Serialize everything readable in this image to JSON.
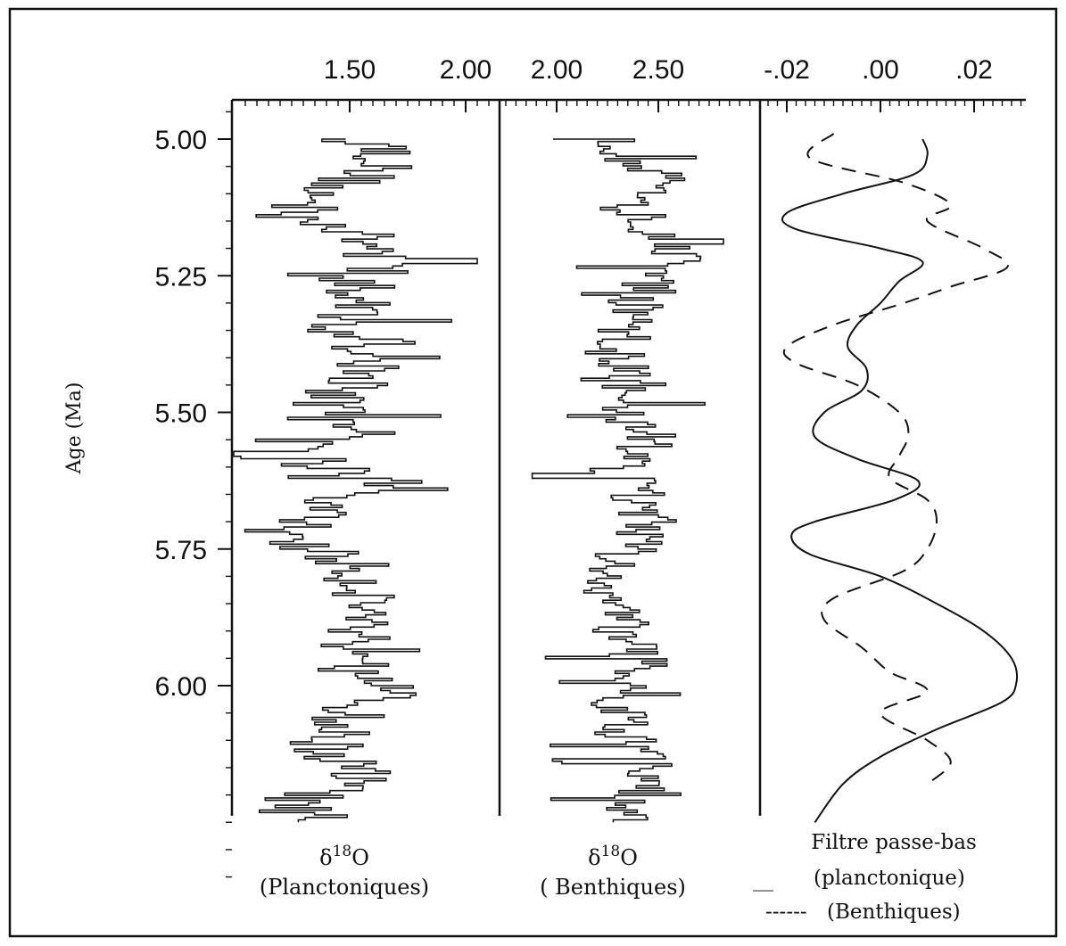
{
  "chart_data": {
    "type": "line",
    "layout": "three-panel-stratigraphic",
    "y_axis": {
      "label": "Age (Ma)",
      "range": [
        4.9,
        6.37
      ],
      "inverted": true,
      "tick_labels": [
        "5.00",
        "5.25",
        "5.50",
        "5.75",
        "6.00"
      ],
      "tick_values": [
        5.0,
        5.25,
        5.5,
        5.75,
        6.0
      ]
    },
    "panels": [
      {
        "id": "planktonic",
        "caption_symbol": "δ",
        "caption_sup": "18",
        "caption_main": "O",
        "caption_sub": "(Planctoniques)",
        "x_range": [
          1.0,
          2.05
        ],
        "tick_labels": [
          "1.50",
          "2.00"
        ],
        "tick_values": [
          1.5,
          2.0
        ],
        "series": {
          "style": "solid",
          "color": "#111111",
          "age": [
            5.0,
            5.04,
            5.08,
            5.12,
            5.16,
            5.22,
            5.27,
            5.32,
            5.37,
            5.42,
            5.48,
            5.53,
            5.58,
            5.63,
            5.68,
            5.73,
            5.78,
            5.84,
            5.9,
            5.96,
            6.01,
            6.07,
            6.12,
            6.17,
            6.21,
            6.25
          ],
          "value": [
            1.62,
            1.68,
            1.5,
            1.25,
            1.45,
            1.7,
            1.48,
            1.55,
            1.4,
            1.58,
            1.42,
            1.6,
            1.3,
            1.65,
            1.35,
            1.25,
            1.5,
            1.6,
            1.55,
            1.7,
            1.65,
            1.45,
            1.4,
            1.55,
            1.3,
            1.2
          ],
          "extremes": {
            "max": 2.05,
            "max_age": 5.225,
            "min": 1.0,
            "min_age": 5.58
          }
        }
      },
      {
        "id": "benthic",
        "caption_symbol": "δ",
        "caption_sup": "18",
        "caption_main": "O",
        "caption_sub": "( Benthiques)",
        "x_range": [
          1.85,
          2.85
        ],
        "tick_labels": [
          "2.00",
          "2.50"
        ],
        "tick_values": [
          2.0,
          2.5
        ],
        "series": {
          "style": "solid",
          "color": "#111111",
          "age": [
            5.0,
            5.04,
            5.08,
            5.12,
            5.16,
            5.2,
            5.24,
            5.28,
            5.32,
            5.36,
            5.4,
            5.45,
            5.5,
            5.55,
            5.6,
            5.65,
            5.7,
            5.75,
            5.8,
            5.85,
            5.9,
            5.95,
            6.0,
            6.05,
            6.1,
            6.15,
            6.2,
            6.25
          ],
          "value": [
            2.3,
            2.35,
            2.55,
            2.4,
            2.45,
            2.6,
            2.5,
            2.45,
            2.35,
            2.3,
            2.28,
            2.4,
            2.35,
            2.45,
            2.3,
            2.4,
            2.45,
            2.35,
            2.3,
            2.25,
            2.32,
            2.4,
            2.38,
            2.28,
            2.35,
            2.42,
            2.38,
            2.3
          ],
          "extremes": {
            "max": 2.82,
            "max_age": 5.19,
            "min": 1.88,
            "min_age": 5.62
          }
        }
      },
      {
        "id": "filter",
        "x_range": [
          -0.024,
          0.03
        ],
        "tick_labels": [
          "-.02",
          ".00",
          ".02"
        ],
        "tick_values": [
          -0.02,
          0.0,
          0.02
        ],
        "series": [
          {
            "name": "(planctonique)",
            "style": "solid",
            "age": [
              5.0,
              5.03,
              5.065,
              5.1,
              5.135,
              5.165,
              5.2,
              5.225,
              5.26,
              5.3,
              5.34,
              5.38,
              5.42,
              5.46,
              5.5,
              5.545,
              5.585,
              5.625,
              5.66,
              5.7,
              5.725,
              5.76,
              5.8,
              5.85,
              5.9,
              5.95,
              5.995,
              6.03,
              6.08,
              6.13,
              6.18,
              6.25
            ],
            "value": [
              0.009,
              0.01,
              0.007,
              -0.008,
              -0.02,
              -0.018,
              0.0,
              0.009,
              0.004,
              0.0,
              -0.005,
              -0.007,
              -0.003,
              -0.004,
              -0.012,
              -0.014,
              -0.005,
              0.008,
              0.003,
              -0.014,
              -0.019,
              -0.015,
              0.0,
              0.012,
              0.022,
              0.028,
              0.029,
              0.026,
              0.012,
              0.0,
              -0.008,
              -0.014
            ]
          },
          {
            "name": "(Benthiques)",
            "style": "dashed",
            "age": [
              4.99,
              5.035,
              5.08,
              5.12,
              5.15,
              5.2,
              5.235,
              5.27,
              5.3,
              5.34,
              5.38,
              5.41,
              5.45,
              5.5,
              5.54,
              5.58,
              5.62,
              5.66,
              5.7,
              5.75,
              5.79,
              5.84,
              5.88,
              5.93,
              5.975,
              6.01,
              6.05,
              6.1,
              6.14,
              6.18
            ],
            "value": [
              -0.01,
              -0.015,
              0.005,
              0.015,
              0.01,
              0.022,
              0.027,
              0.015,
              0.005,
              -0.01,
              -0.02,
              -0.018,
              -0.005,
              0.004,
              0.006,
              0.004,
              0.002,
              0.01,
              0.012,
              0.01,
              0.005,
              -0.01,
              -0.012,
              -0.004,
              0.002,
              0.01,
              0.0,
              0.01,
              0.015,
              0.01
            ]
          }
        ],
        "caption_title": "Filtre passe-bas",
        "legend_solid_mark": "__",
        "legend_dashed_mark": "------"
      }
    ]
  }
}
